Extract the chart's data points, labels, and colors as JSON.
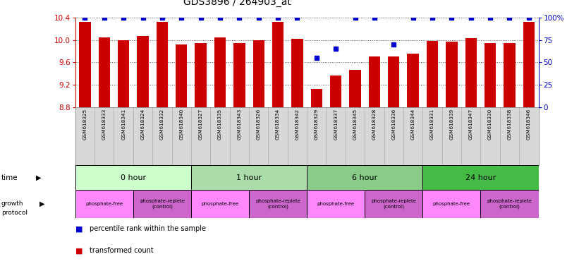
{
  "title": "GDS3896 / 264903_at",
  "samples": [
    "GSM618325",
    "GSM618333",
    "GSM618341",
    "GSM618324",
    "GSM618332",
    "GSM618340",
    "GSM618327",
    "GSM618335",
    "GSM618343",
    "GSM618326",
    "GSM618334",
    "GSM618342",
    "GSM618329",
    "GSM618337",
    "GSM618345",
    "GSM618328",
    "GSM618336",
    "GSM618344",
    "GSM618331",
    "GSM618339",
    "GSM618347",
    "GSM618330",
    "GSM618338",
    "GSM618346"
  ],
  "bar_values": [
    10.32,
    10.04,
    10.0,
    10.07,
    10.32,
    9.92,
    9.95,
    10.04,
    9.95,
    9.99,
    10.33,
    10.02,
    9.12,
    9.36,
    9.46,
    9.7,
    9.7,
    9.75,
    9.98,
    9.97,
    10.03,
    9.95,
    9.95,
    10.33
  ],
  "percentile_values": [
    100,
    100,
    100,
    100,
    100,
    100,
    100,
    100,
    100,
    100,
    100,
    100,
    55,
    65,
    100,
    100,
    70,
    100,
    100,
    100,
    100,
    100,
    100,
    100
  ],
  "ylim_left": [
    8.8,
    10.4
  ],
  "ylim_right": [
    0,
    100
  ],
  "yticks_left": [
    8.8,
    9.2,
    9.6,
    10.0,
    10.4
  ],
  "yticks_right": [
    0,
    25,
    50,
    75,
    100
  ],
  "bar_color": "#cc0000",
  "marker_color": "#0000cc",
  "time_groups": [
    {
      "label": "0 hour",
      "start": 0,
      "end": 6,
      "color": "#ccffcc"
    },
    {
      "label": "1 hour",
      "start": 6,
      "end": 12,
      "color": "#aaddaa"
    },
    {
      "label": "6 hour",
      "start": 12,
      "end": 18,
      "color": "#88cc88"
    },
    {
      "label": "24 hour",
      "start": 18,
      "end": 24,
      "color": "#44bb44"
    }
  ],
  "protocol_groups": [
    {
      "label": "phosphate-free",
      "start": 0,
      "end": 3,
      "color": "#ff88ff"
    },
    {
      "label": "phosphate-replete\n(control)",
      "start": 3,
      "end": 6,
      "color": "#cc66cc"
    },
    {
      "label": "phosphate-free",
      "start": 6,
      "end": 9,
      "color": "#ff88ff"
    },
    {
      "label": "phosphate-replete\n(control)",
      "start": 9,
      "end": 12,
      "color": "#cc66cc"
    },
    {
      "label": "phosphate-free",
      "start": 12,
      "end": 15,
      "color": "#ff88ff"
    },
    {
      "label": "phosphate-replete\n(control)",
      "start": 15,
      "end": 18,
      "color": "#cc66cc"
    },
    {
      "label": "phosphate-free",
      "start": 18,
      "end": 21,
      "color": "#ff88ff"
    },
    {
      "label": "phosphate-replete\n(control)",
      "start": 21,
      "end": 24,
      "color": "#cc66cc"
    }
  ],
  "legend_bar_label": "transformed count",
  "legend_marker_label": "percentile rank within the sample",
  "bar_color_label": "#cc0000",
  "marker_color_label": "#0000cc",
  "background_color": "#ffffff",
  "xlabels_bg": "#d8d8d8",
  "sample_divider_color": "#aaaaaa"
}
